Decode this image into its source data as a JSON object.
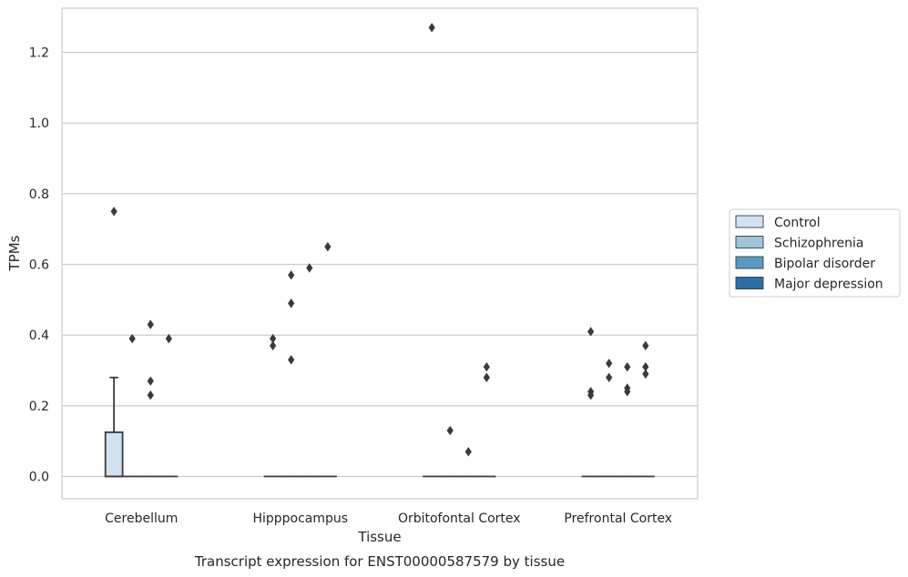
{
  "chart_data": {
    "type": "box",
    "xlabel": "Tissue",
    "ylabel": "TPMs",
    "caption": "Transcript expression for ENST00000587579 by tissue",
    "categories": [
      "Cerebellum",
      "Hipppocampus",
      "Orbitofontal Cortex",
      "Prefrontal Cortex"
    ],
    "ylim": [
      -0.063,
      1.325
    ],
    "yticks": [
      0.0,
      0.2,
      0.4,
      0.6,
      0.8,
      1.0,
      1.2
    ],
    "ytick_labels": [
      "0.0",
      "0.2",
      "0.4",
      "0.6",
      "0.8",
      "1.0",
      "1.2"
    ],
    "grid": "horizontal",
    "legend_position": "right",
    "series": [
      {
        "name": "Control",
        "color": "#d1e2f0",
        "boxes": [
          {
            "q1": 0.0,
            "median": 0.0,
            "q3": 0.125,
            "whisker_low": 0.0,
            "whisker_high": 0.28,
            "outliers": [
              0.75
            ]
          },
          {
            "q1": 0.0,
            "median": 0.0,
            "q3": 0.0,
            "whisker_low": 0.0,
            "whisker_high": 0.0,
            "outliers": [
              0.37,
              0.39
            ]
          },
          {
            "q1": 0.0,
            "median": 0.0,
            "q3": 0.0,
            "whisker_low": 0.0,
            "whisker_high": 0.0,
            "outliers": [
              1.27
            ]
          },
          {
            "q1": 0.0,
            "median": 0.0,
            "q3": 0.0,
            "whisker_low": 0.0,
            "whisker_high": 0.0,
            "outliers": [
              0.23,
              0.24,
              0.41
            ]
          }
        ]
      },
      {
        "name": "Schizophrenia",
        "color": "#9fc4dd",
        "boxes": [
          {
            "q1": 0.0,
            "median": 0.0,
            "q3": 0.0,
            "whisker_low": 0.0,
            "whisker_high": 0.0,
            "outliers": [
              0.39
            ]
          },
          {
            "q1": 0.0,
            "median": 0.0,
            "q3": 0.0,
            "whisker_low": 0.0,
            "whisker_high": 0.0,
            "outliers": [
              0.33,
              0.49,
              0.57
            ]
          },
          {
            "q1": 0.0,
            "median": 0.0,
            "q3": 0.0,
            "whisker_low": 0.0,
            "whisker_high": 0.0,
            "outliers": [
              0.13
            ]
          },
          {
            "q1": 0.0,
            "median": 0.0,
            "q3": 0.0,
            "whisker_low": 0.0,
            "whisker_high": 0.0,
            "outliers": [
              0.28,
              0.32
            ]
          }
        ]
      },
      {
        "name": "Bipolar disorder",
        "color": "#5a99c5",
        "boxes": [
          {
            "q1": 0.0,
            "median": 0.0,
            "q3": 0.0,
            "whisker_low": 0.0,
            "whisker_high": 0.0,
            "outliers": [
              0.23,
              0.27,
              0.43
            ]
          },
          {
            "q1": 0.0,
            "median": 0.0,
            "q3": 0.0,
            "whisker_low": 0.0,
            "whisker_high": 0.0,
            "outliers": [
              0.59
            ]
          },
          {
            "q1": 0.0,
            "median": 0.0,
            "q3": 0.0,
            "whisker_low": 0.0,
            "whisker_high": 0.0,
            "outliers": [
              0.07
            ]
          },
          {
            "q1": 0.0,
            "median": 0.0,
            "q3": 0.0,
            "whisker_low": 0.0,
            "whisker_high": 0.0,
            "outliers": [
              0.24,
              0.25,
              0.31
            ]
          }
        ]
      },
      {
        "name": "Major depression",
        "color": "#2c6ea8",
        "boxes": [
          {
            "q1": 0.0,
            "median": 0.0,
            "q3": 0.0,
            "whisker_low": 0.0,
            "whisker_high": 0.0,
            "outliers": [
              0.39
            ]
          },
          {
            "q1": 0.0,
            "median": 0.0,
            "q3": 0.0,
            "whisker_low": 0.0,
            "whisker_high": 0.0,
            "outliers": [
              0.65
            ]
          },
          {
            "q1": 0.0,
            "median": 0.0,
            "q3": 0.0,
            "whisker_low": 0.0,
            "whisker_high": 0.0,
            "outliers": [
              0.28,
              0.31
            ]
          },
          {
            "q1": 0.0,
            "median": 0.0,
            "q3": 0.0,
            "whisker_low": 0.0,
            "whisker_high": 0.0,
            "outliers": [
              0.29,
              0.31,
              0.37
            ]
          }
        ]
      }
    ],
    "colors": {
      "grid": "#cccccc",
      "frame": "#cccccc",
      "box_edge": "#3a3a3a",
      "outlier": "#3a3a3a",
      "legend_frame": "#cccccc"
    }
  }
}
